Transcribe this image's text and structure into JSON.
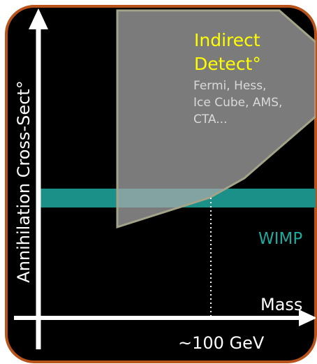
{
  "axes": {
    "y_label": "Annihilation Cross-Sect°",
    "x_label": "Mass",
    "x_marker": "~100 GeV"
  },
  "region": {
    "title_lines": [
      "Indirect",
      "Detect°"
    ],
    "experiments": [
      "Fermi, Hess,",
      "Ice Cube, AMS,",
      "CTA..."
    ]
  },
  "band_label": "WIMP"
}
